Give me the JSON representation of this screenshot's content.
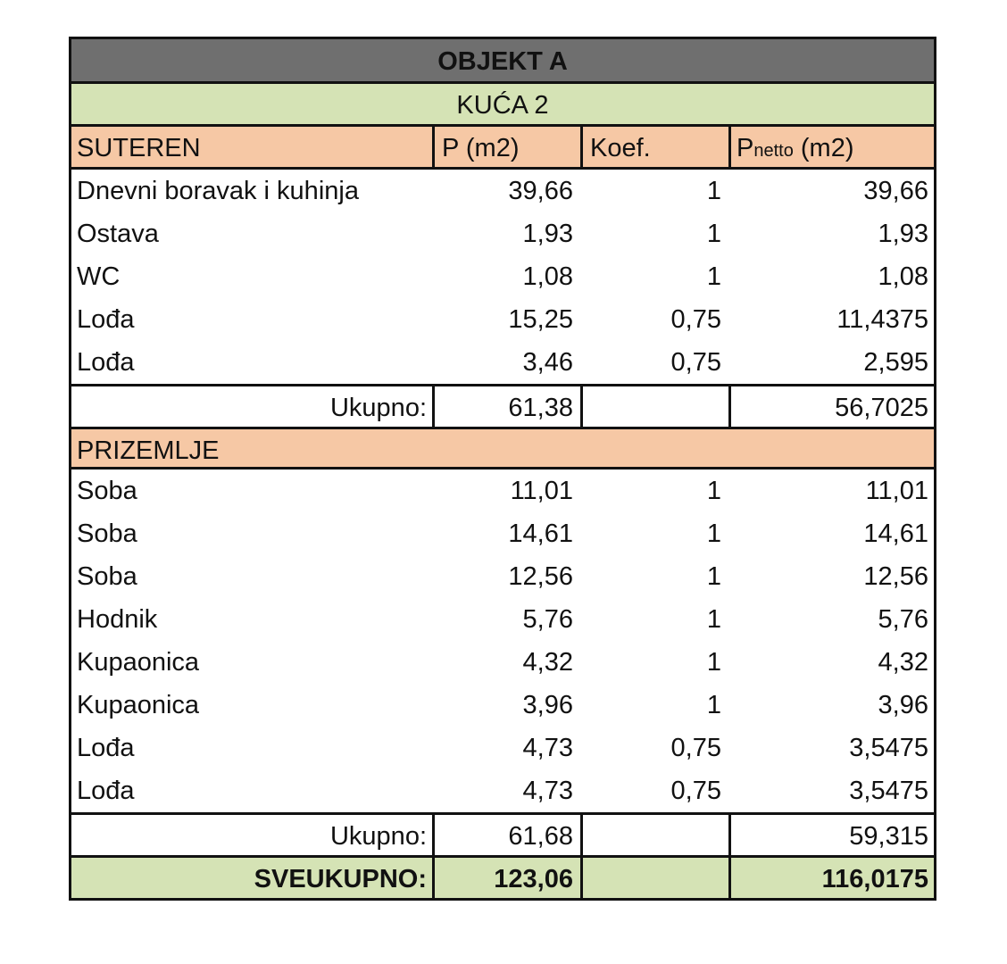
{
  "title": "OBJEKT A",
  "subtitle": "KUĆA 2",
  "header": {
    "section": "SUTEREN",
    "area": "P (m2)",
    "coef": "Koef.",
    "net_prefix": "P",
    "net_sub": "netto",
    "net_suffix": " (m2)"
  },
  "suteren": [
    {
      "name": "Dnevni boravak i kuhinja",
      "area": "39,66",
      "coef": "1",
      "net": "39,66"
    },
    {
      "name": "Ostava",
      "area": "1,93",
      "coef": "1",
      "net": "1,93"
    },
    {
      "name": "WC",
      "area": "1,08",
      "coef": "1",
      "net": "1,08"
    },
    {
      "name": "Lođa",
      "area": "15,25",
      "coef": "0,75",
      "net": "11,4375"
    },
    {
      "name": "Lođa",
      "area": "3,46",
      "coef": "0,75",
      "net": "2,595"
    }
  ],
  "suteren_total": {
    "label": "Ukupno:",
    "area": "61,38",
    "net": "56,7025"
  },
  "prizemlje_label": "PRIZEMLJE",
  "prizemlje": [
    {
      "name": "Soba",
      "area": "11,01",
      "coef": "1",
      "net": "11,01"
    },
    {
      "name": "Soba",
      "area": "14,61",
      "coef": "1",
      "net": "14,61"
    },
    {
      "name": "Soba",
      "area": "12,56",
      "coef": "1",
      "net": "12,56"
    },
    {
      "name": "Hodnik",
      "area": "5,76",
      "coef": "1",
      "net": "5,76"
    },
    {
      "name": "Kupaonica",
      "area": "4,32",
      "coef": "1",
      "net": "4,32"
    },
    {
      "name": "Kupaonica",
      "area": "3,96",
      "coef": "1",
      "net": "3,96"
    },
    {
      "name": "Lođa",
      "area": "4,73",
      "coef": "0,75",
      "net": "3,5475"
    },
    {
      "name": "Lođa",
      "area": "4,73",
      "coef": "0,75",
      "net": "3,5475"
    }
  ],
  "prizemlje_total": {
    "label": "Ukupno:",
    "area": "61,68",
    "net": "59,315"
  },
  "grand_total": {
    "label": "SVEUKUPNO:",
    "area": "123,06",
    "net": "116,0175"
  },
  "colors": {
    "title_bg": "#6f6f6f",
    "green": "#d5e3b5",
    "peach": "#f6c8a5"
  }
}
